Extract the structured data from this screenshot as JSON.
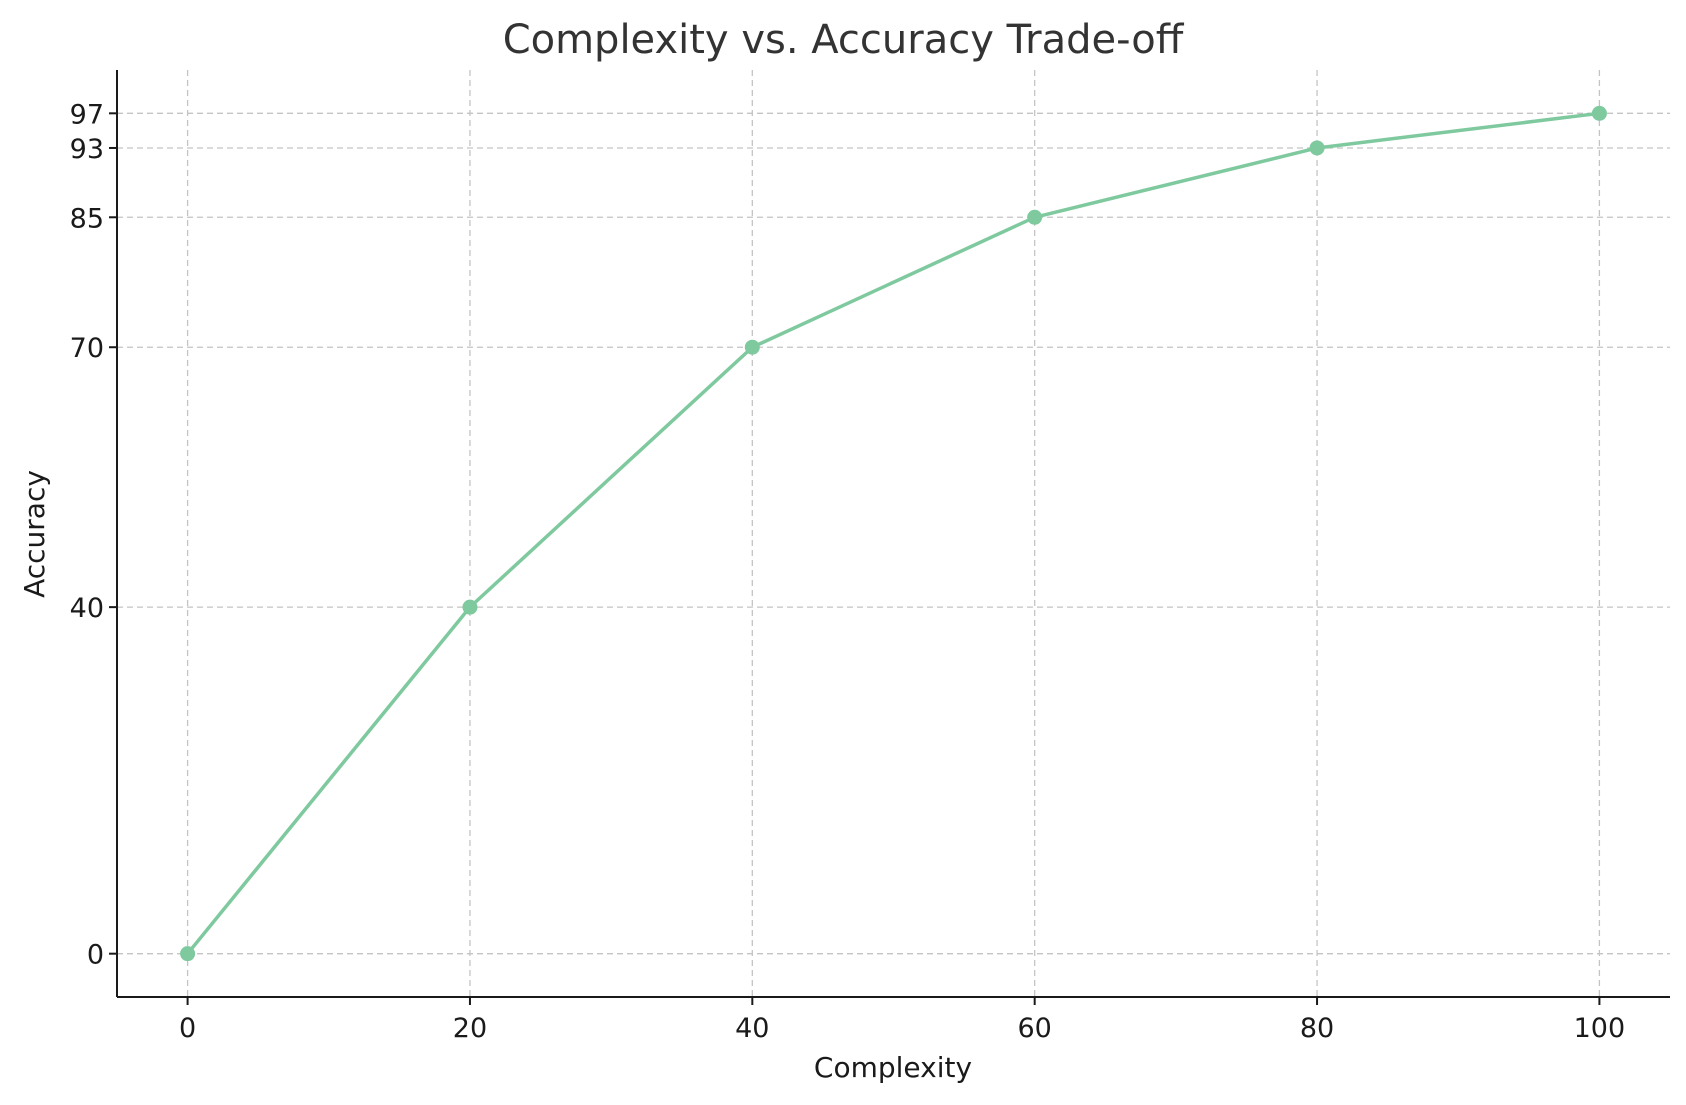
{
  "chart_data": {
    "type": "line",
    "title": "Complexity vs. Accuracy Trade-off",
    "xlabel": "Complexity",
    "ylabel": "Accuracy",
    "x": [
      0,
      20,
      40,
      60,
      80,
      100
    ],
    "series": [
      {
        "values": [
          0,
          40,
          70,
          85,
          93,
          97
        ],
        "color": "#7fc99f"
      }
    ],
    "x_ticks": [
      0,
      20,
      40,
      60,
      80,
      100
    ],
    "y_ticks": [
      0,
      40,
      70,
      85,
      93,
      97
    ],
    "xlim": [
      -5,
      105
    ],
    "ylim": [
      -5,
      102
    ],
    "grid": true,
    "legend": "none"
  }
}
